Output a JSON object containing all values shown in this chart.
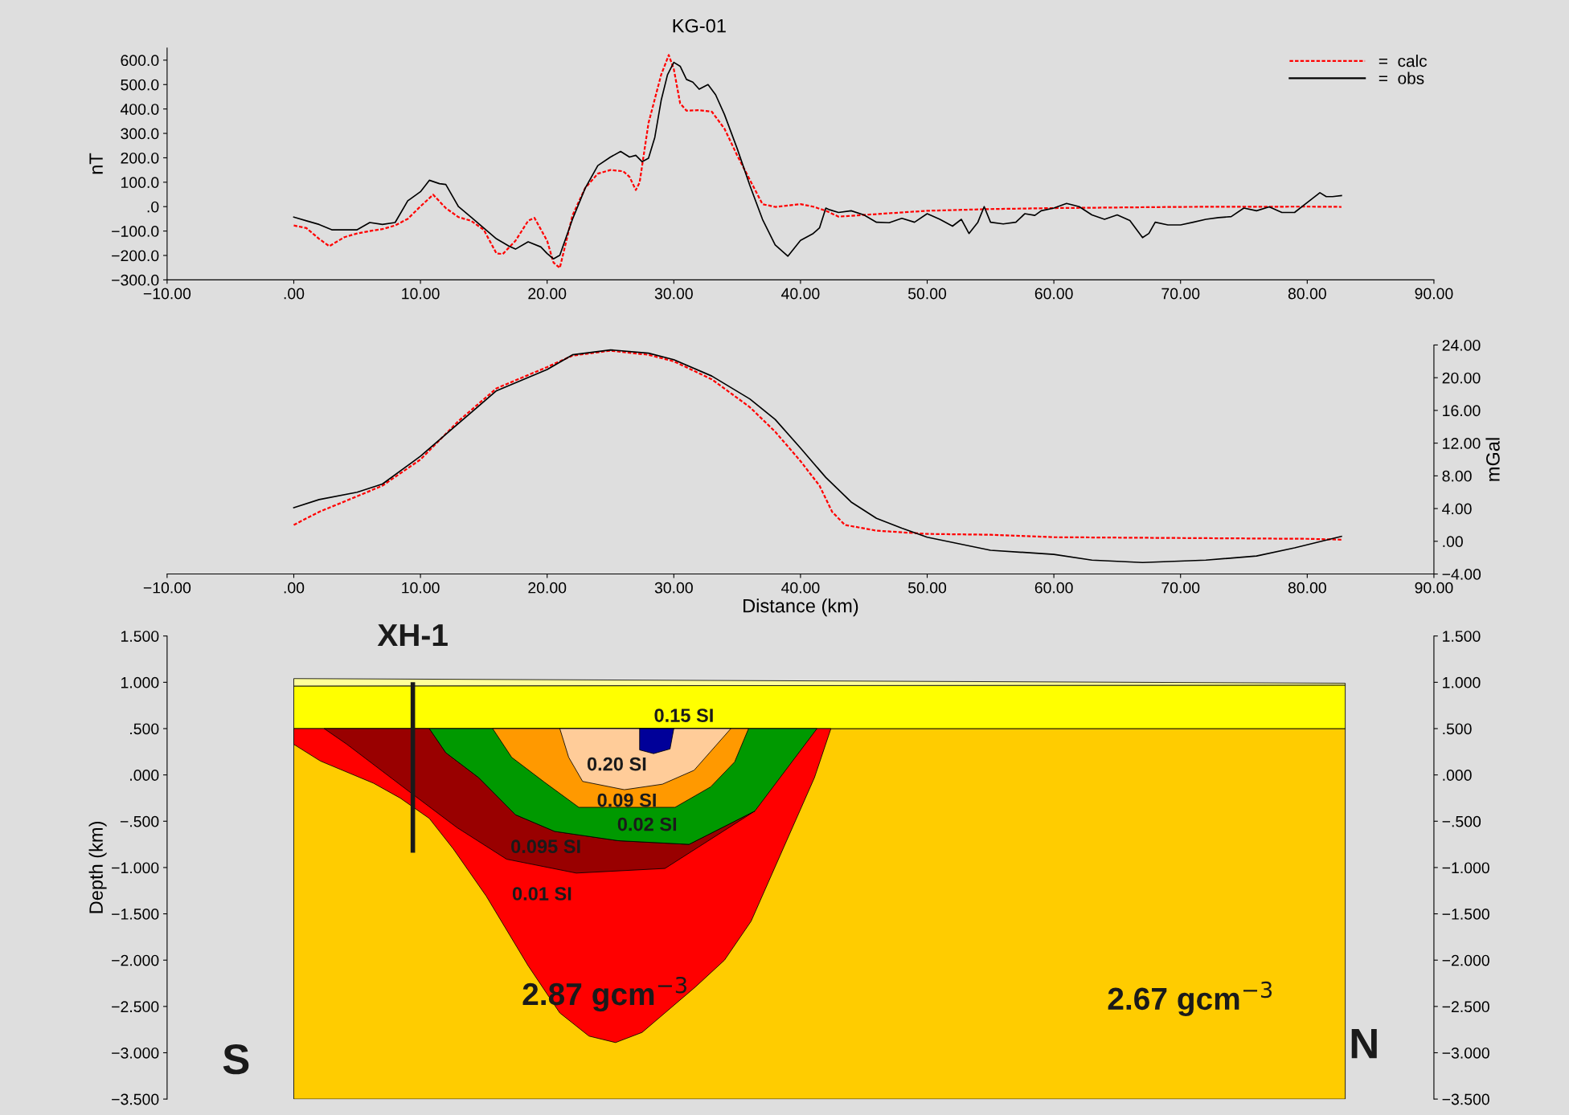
{
  "chart_data": [
    {
      "type": "line",
      "title": "KG-01",
      "ylabel": "nT",
      "legend": "top right",
      "grid": false,
      "xlim": [
        -10,
        90
      ],
      "xticks": [
        {
          "value": -10,
          "label": "−10.00"
        },
        {
          "value": 0,
          "label": ".00"
        },
        {
          "value": 10,
          "label": "10.00"
        },
        {
          "value": 20,
          "label": "20.00"
        },
        {
          "value": 30,
          "label": "30.00"
        },
        {
          "value": 40,
          "label": "40.00"
        },
        {
          "value": 50,
          "label": "50.00"
        },
        {
          "value": 60,
          "label": "60.00"
        },
        {
          "value": 70,
          "label": "70.00"
        },
        {
          "value": 80,
          "label": "80.00"
        },
        {
          "value": 90,
          "label": "90.00"
        }
      ],
      "ylim": [
        -300,
        650
      ],
      "yticks": [
        {
          "value": -300,
          "label": "−300.0"
        },
        {
          "value": -200,
          "label": "−200.0"
        },
        {
          "value": -100,
          "label": "−100.0"
        },
        {
          "value": 0,
          "label": ".0"
        },
        {
          "value": 100,
          "label": "100.0"
        },
        {
          "value": 200,
          "label": "200.0"
        },
        {
          "value": 300,
          "label": "300.0"
        },
        {
          "value": 400,
          "label": "400.0"
        },
        {
          "value": 500,
          "label": "500.0"
        },
        {
          "value": 600,
          "label": "600.0"
        }
      ],
      "series": [
        {
          "name": "=  calc",
          "color": "#ff0000",
          "line_style": "dashed",
          "x": [
            0,
            1,
            2,
            2.8,
            4,
            5,
            6,
            7,
            8,
            9,
            10,
            11,
            12,
            13,
            14,
            15,
            16,
            16.5,
            17.5,
            18.5,
            19,
            20,
            20.5,
            21,
            22,
            23,
            24,
            25,
            26,
            26.5,
            27,
            27.3,
            28,
            29,
            29.6,
            30,
            30.5,
            31,
            32,
            33,
            34,
            35,
            36,
            37,
            38,
            40,
            41,
            42,
            43,
            45,
            50,
            55,
            60,
            70,
            80,
            82.7
          ],
          "values": [
            -77,
            -88,
            -132,
            -162,
            -125,
            -110,
            -100,
            -92,
            -77,
            -50,
            1,
            49,
            -6,
            -43,
            -58,
            -95,
            -192,
            -194,
            -140,
            -58,
            -46,
            -140,
            -229,
            -251,
            -36,
            76,
            135,
            150,
            145,
            122,
            68,
            99,
            342,
            540,
            621,
            563,
            423,
            393,
            395,
            389,
            319,
            210,
            110,
            10,
            -1,
            10,
            0,
            -17,
            -41,
            -34,
            -17,
            -10,
            -6,
            -1,
            0,
            -1
          ]
        },
        {
          "name": "=  obs",
          "color": "#000000",
          "line_style": "solid",
          "x": [
            0,
            1,
            2,
            3,
            4,
            5,
            6,
            7,
            8,
            9,
            10,
            10.7,
            11.5,
            12,
            13,
            14,
            15,
            16,
            17,
            17.5,
            18.5,
            19.5,
            20,
            20.5,
            21,
            22,
            23,
            24,
            25,
            25.8,
            26.5,
            27,
            27.5,
            28,
            28.5,
            29,
            29.5,
            30,
            30.5,
            31,
            31.5,
            32,
            32.7,
            33.3,
            34,
            35,
            36,
            37,
            38,
            39,
            40,
            41,
            41.5,
            42,
            42.3,
            43,
            44,
            45,
            46,
            47,
            48,
            49,
            50,
            51,
            52,
            52.7,
            53.3,
            54,
            54.5,
            55,
            56,
            57,
            57.7,
            58.5,
            59,
            60,
            61,
            62,
            63,
            64,
            65,
            66,
            67,
            67.5,
            68,
            69,
            70,
            71,
            72,
            73,
            74,
            75,
            76,
            77,
            78,
            79,
            80,
            81,
            81.5,
            82,
            82.7
          ],
          "values": [
            -43,
            -58,
            -73,
            -95,
            -95,
            -95,
            -65,
            -73,
            -65,
            24,
            61,
            108,
            94,
            91,
            0,
            -43,
            -88,
            -132,
            -162,
            -174,
            -144,
            -165,
            -192,
            -214,
            -199,
            -52,
            75,
            168,
            203,
            226,
            203,
            210,
            184,
            198,
            284,
            435,
            540,
            591,
            575,
            521,
            510,
            481,
            500,
            458,
            377,
            238,
            87,
            -52,
            -157,
            -203,
            -138,
            -110,
            -87,
            -6,
            -13,
            -24,
            -17,
            -34,
            -64,
            -66,
            -48,
            -64,
            -29,
            -52,
            -80,
            -52,
            -110,
            -64,
            0,
            -64,
            -71,
            -64,
            -29,
            -36,
            -17,
            -6,
            13,
            0,
            -34,
            -52,
            -34,
            -57,
            -127,
            -110,
            -64,
            -75,
            -75,
            -64,
            -52,
            -45,
            -41,
            -6,
            -17,
            -1,
            -24,
            -24,
            17,
            57,
            41,
            41,
            45
          ]
        }
      ]
    },
    {
      "type": "line",
      "xlabel": "Distance (km)",
      "y2label": "mGal",
      "grid": false,
      "xlim": [
        -10,
        90
      ],
      "xticks": [
        {
          "value": -10,
          "label": "−10.00"
        },
        {
          "value": 0,
          "label": ".00"
        },
        {
          "value": 10,
          "label": "10.00"
        },
        {
          "value": 20,
          "label": "20.00"
        },
        {
          "value": 30,
          "label": "30.00"
        },
        {
          "value": 40,
          "label": "40.00"
        },
        {
          "value": 50,
          "label": "50.00"
        },
        {
          "value": 60,
          "label": "60.00"
        },
        {
          "value": 70,
          "label": "70.00"
        },
        {
          "value": 80,
          "label": "80.00"
        },
        {
          "value": 90,
          "label": "90.00"
        }
      ],
      "y2lim": [
        -4,
        24
      ],
      "y2ticks": [
        {
          "value": -4,
          "label": "−4.00"
        },
        {
          "value": 0,
          "label": ".00"
        },
        {
          "value": 4,
          "label": "4.00"
        },
        {
          "value": 8,
          "label": "8.00"
        },
        {
          "value": 12,
          "label": "12.00"
        },
        {
          "value": 16,
          "label": "16.00"
        },
        {
          "value": 20,
          "label": "20.00"
        },
        {
          "value": 24,
          "label": "24.00"
        }
      ],
      "series": [
        {
          "color": "#ff0000",
          "axis": "y2",
          "line_style": "dashed",
          "x": [
            0,
            2,
            5,
            7,
            10,
            13,
            16,
            20,
            22,
            25,
            28,
            30,
            33,
            36,
            38,
            40,
            41.5,
            42.5,
            43.5,
            46,
            50,
            55,
            60,
            70,
            80,
            82.7
          ],
          "values": [
            2.0,
            3.6,
            5.5,
            6.8,
            10.0,
            14.7,
            18.7,
            21.3,
            22.7,
            23.3,
            22.8,
            22.0,
            19.8,
            16.4,
            13.4,
            9.8,
            6.8,
            3.6,
            2.0,
            1.3,
            0.9,
            0.8,
            0.5,
            0.4,
            0.3,
            0.2
          ]
        },
        {
          "color": "#000000",
          "axis": "y2",
          "line_style": "solid",
          "x": [
            0,
            2,
            5,
            7,
            10,
            13,
            16,
            20,
            22,
            25,
            28,
            30,
            33,
            36,
            38,
            40,
            42,
            44,
            46,
            48,
            50,
            55,
            60,
            63,
            67,
            72,
            76,
            79,
            82.7
          ],
          "values": [
            4.1,
            5.1,
            6.0,
            7.0,
            10.4,
            14.4,
            18.4,
            21.0,
            22.8,
            23.4,
            23.0,
            22.2,
            20.2,
            17.4,
            14.9,
            11.4,
            7.8,
            4.8,
            2.8,
            1.6,
            0.5,
            -1.1,
            -1.6,
            -2.3,
            -2.6,
            -2.3,
            -1.8,
            -0.8,
            0.6
          ]
        }
      ]
    },
    {
      "type": "area",
      "ylabel": "Depth (km)",
      "tick_labels": "y",
      "grid": false,
      "xlim": [
        -10,
        90
      ],
      "ylim": [
        -3.5,
        1.5
      ],
      "yticks": [
        {
          "value": -3.5,
          "label": "−3.500"
        },
        {
          "value": -3,
          "label": "−3.000"
        },
        {
          "value": -2.5,
          "label": "−2.500"
        },
        {
          "value": -2,
          "label": "−2.000"
        },
        {
          "value": -1.5,
          "label": "−1.500"
        },
        {
          "value": -1,
          "label": "−1.000"
        },
        {
          "value": -0.5,
          "label": "−.500"
        },
        {
          "value": 0,
          "label": ".000"
        },
        {
          "value": 0.5,
          "label": ".500"
        },
        {
          "value": 1,
          "label": "1.000"
        },
        {
          "value": 1.5,
          "label": "1.500"
        }
      ],
      "y2lim": [
        -3.5,
        1.5
      ],
      "y2ticks": [
        {
          "value": -3.5,
          "label": "−3.500"
        },
        {
          "value": -3,
          "label": "−3.000"
        },
        {
          "value": -2.5,
          "label": "−2.500"
        },
        {
          "value": -2,
          "label": "−2.000"
        },
        {
          "value": -1.5,
          "label": "−1.500"
        },
        {
          "value": -1,
          "label": "−1.000"
        },
        {
          "value": -0.5,
          "label": "−.500"
        },
        {
          "value": 0,
          "label": ".000"
        },
        {
          "value": 0.5,
          "label": ".500"
        },
        {
          "value": 1,
          "label": "1.000"
        },
        {
          "value": 1.5,
          "label": "1.500"
        }
      ],
      "series": [
        {
          "color": "#ffcc00",
          "x": [
            0,
            83,
            83,
            0
          ],
          "values": [
            0.5,
            0.5,
            -3.5,
            -3.5
          ]
        },
        {
          "color": "#ffff00",
          "x": [
            0,
            83,
            83,
            0
          ],
          "values": [
            0.96,
            0.97,
            0.5,
            0.5
          ]
        },
        {
          "color": "#ffff99",
          "x": [
            0,
            83,
            83,
            0
          ],
          "values": [
            1.04,
            0.99,
            0.97,
            0.96
          ]
        },
        {
          "color": "#ff0000",
          "x": [
            0,
            42.4,
            41.1,
            36.1,
            34.0,
            31.7,
            27.5,
            25.4,
            23.3,
            21.0,
            18.5,
            15.2,
            12.6,
            10.7,
            8.4,
            6.3,
            2.1,
            0
          ],
          "values": [
            0.5,
            0.5,
            -0.03,
            -1.58,
            -2.0,
            -2.29,
            -2.78,
            -2.89,
            -2.82,
            -2.57,
            -2.06,
            -1.31,
            -0.8,
            -0.47,
            -0.25,
            -0.09,
            0.15,
            0.33
          ]
        },
        {
          "color": "#990000",
          "x": [
            2.4,
            10.7,
            12.0,
            14.6,
            17.5,
            20.6,
            25.6,
            31.2,
            36.4,
            29.3,
            22.3,
            16.8,
            12.9,
            9.4,
            4.2
          ],
          "values": [
            0.5,
            0.5,
            0.24,
            -0.03,
            -0.43,
            -0.61,
            -0.71,
            -0.75,
            -0.39,
            -1.01,
            -1.06,
            -0.91,
            -0.57,
            -0.21,
            0.33
          ]
        },
        {
          "color": "#009900",
          "x": [
            10.7,
            41.3,
            36.4,
            31.2,
            25.6,
            20.6,
            17.5,
            14.6,
            12.0
          ],
          "values": [
            0.5,
            0.5,
            -0.39,
            -0.75,
            -0.71,
            -0.61,
            -0.43,
            -0.03,
            0.24
          ]
        },
        {
          "color": "#ff9900",
          "x": [
            15.7,
            35.9,
            34.8,
            32.9,
            30.1,
            22.5,
            19.8,
            17.2
          ],
          "values": [
            0.5,
            0.5,
            0.14,
            -0.13,
            -0.35,
            -0.35,
            -0.08,
            0.19
          ]
        },
        {
          "color": "#ffcc99",
          "x": [
            21.0,
            34.5,
            31.6,
            29.1,
            26.1,
            22.8,
            21.7
          ],
          "values": [
            0.5,
            0.5,
            0.05,
            -0.1,
            -0.16,
            -0.07,
            0.19
          ]
        },
        {
          "color": "#000099",
          "x": [
            27.3,
            30.0,
            29.7,
            28.4,
            27.3
          ],
          "values": [
            0.5,
            0.5,
            0.28,
            0.23,
            0.27
          ]
        },
        {
          "type": "line",
          "color": "#1a1a1a",
          "x": [
            9.4,
            9.4
          ],
          "values": [
            1.0,
            -0.84
          ]
        }
      ],
      "annotations": [
        "XH-1",
        "0.15 SI",
        "0.20 SI",
        "0.09 SI",
        "0.02 SI",
        "0.095 SI",
        "0.01 SI",
        "2.87 gcm$^{−3}$",
        "2.67 gcm$^{−3}$",
        "S",
        "N"
      ]
    }
  ]
}
